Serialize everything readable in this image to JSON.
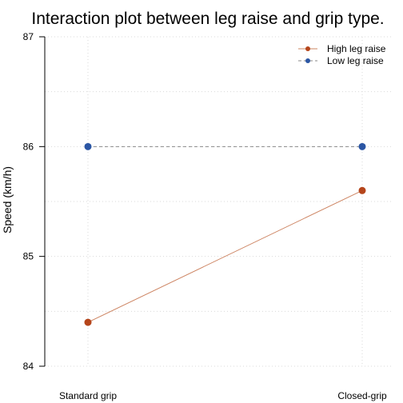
{
  "chart_data": {
    "type": "line",
    "title": "Interaction plot between leg raise and grip type.",
    "xlabel": "",
    "ylabel": "Speed (km/h)",
    "categories": [
      "Standard grip",
      "Closed-grip"
    ],
    "ylim": [
      84,
      87
    ],
    "yticks": [
      84,
      85,
      86,
      87
    ],
    "grid": true,
    "legend_position": "top-right",
    "series": [
      {
        "name": "High leg raise",
        "values": [
          84.4,
          85.6
        ],
        "color": "#b5451b",
        "line_color": "#cd8462",
        "line_style": "solid"
      },
      {
        "name": "Low leg raise",
        "values": [
          86,
          86
        ],
        "color": "#2b56a4",
        "line_color": "#8a8a8a",
        "line_style": "dashed"
      }
    ]
  }
}
